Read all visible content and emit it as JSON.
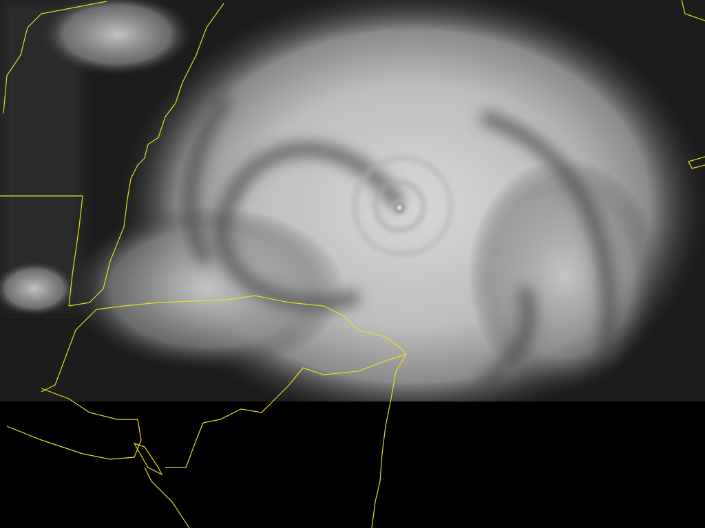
{
  "image": {
    "kind": "satellite-visible-imagery",
    "subject": "hurricane",
    "colors": {
      "background": "#000000",
      "cloud": "#c8c8c8",
      "ocean": "#1c1c1c",
      "borders": "#e8e020"
    }
  }
}
